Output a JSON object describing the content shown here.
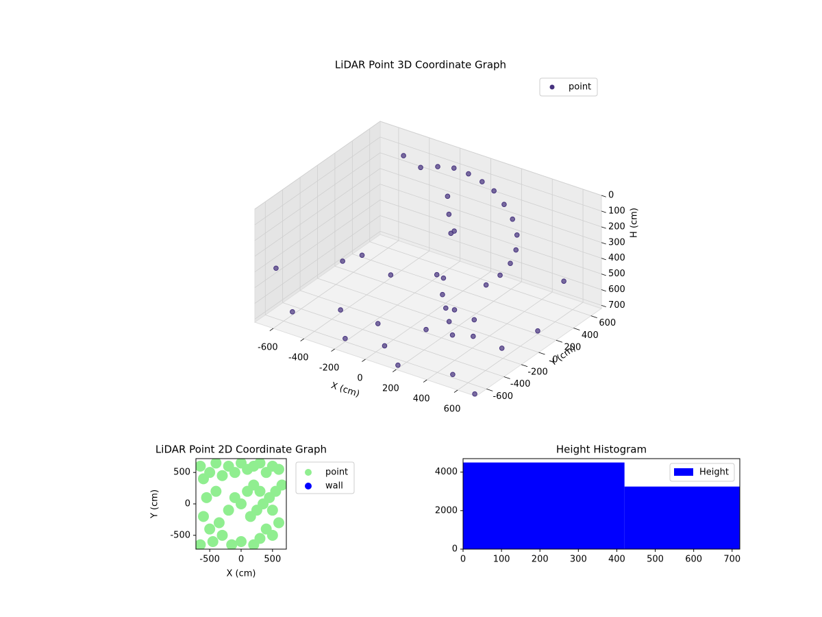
{
  "chart_data": [
    {
      "type": "scatter3d",
      "title": "LiDAR Point 3D Coordinate Graph",
      "x_label": "X (cm)",
      "y_label": "Y (cm)",
      "z_label": "H (cm)",
      "xlim": [
        -720,
        720
      ],
      "ylim": [
        -720,
        720
      ],
      "zlim": [
        720,
        0
      ],
      "xticks": [
        -600,
        -400,
        -200,
        0,
        200,
        400,
        600
      ],
      "yticks": [
        -600,
        -400,
        -200,
        0,
        200,
        400,
        600
      ],
      "zticks": [
        0,
        100,
        200,
        300,
        400,
        500,
        600,
        700
      ],
      "grid": true,
      "legend": "upper right",
      "series": [
        {
          "name": "point",
          "color": "#46327e",
          "x": [
            -500,
            -400,
            -300,
            -200,
            -100,
            0,
            100,
            200,
            300,
            380,
            430,
            450,
            440,
            400,
            -100,
            -80,
            -50,
            0,
            100,
            150,
            200,
            250,
            300,
            200,
            100,
            300,
            350,
            0,
            -600,
            -400,
            -200,
            200,
            500,
            600,
            -600,
            -300,
            -500,
            -650,
            0,
            600,
            650,
            700,
            -100
          ],
          "y": [
            600,
            620,
            640,
            650,
            640,
            620,
            580,
            520,
            440,
            350,
            250,
            150,
            50,
            -40,
            400,
            380,
            350,
            300,
            0,
            -100,
            -150,
            -200,
            -250,
            -50,
            -200,
            0,
            -100,
            100,
            -500,
            -300,
            -600,
            -700,
            -600,
            200,
            300,
            100,
            -100,
            -600,
            -500,
            500,
            -300,
            -700,
            -400
          ],
          "z": [
            100,
            150,
            120,
            100,
            100,
            110,
            120,
            150,
            180,
            220,
            260,
            300,
            340,
            380,
            150,
            250,
            350,
            300,
            450,
            500,
            550,
            600,
            650,
            600,
            700,
            650,
            700,
            500,
            700,
            700,
            700,
            700,
            700,
            700,
            650,
            600,
            500,
            400,
            720,
            500,
            600,
            720,
            650
          ]
        }
      ]
    },
    {
      "type": "scatter",
      "title": "LiDAR Point 2D Coordinate Graph",
      "x_label": "X (cm)",
      "y_label": "Y (cm)",
      "xlim": [
        -720,
        720
      ],
      "ylim": [
        -720,
        720
      ],
      "xticks": [
        -500,
        0,
        500
      ],
      "yticks": [
        -500,
        0,
        500
      ],
      "legend": "outside right",
      "series": [
        {
          "name": "point",
          "color": "#90ee90",
          "x": [
            -650,
            -600,
            -500,
            -400,
            -300,
            -200,
            -100,
            0,
            100,
            200,
            300,
            400,
            500,
            600,
            650,
            550,
            450,
            350,
            250,
            150,
            500,
            600,
            400,
            300,
            200,
            500,
            -100,
            0,
            100,
            200,
            300,
            -200,
            -350,
            -500,
            -600,
            -650,
            -450,
            -300,
            -150,
            0,
            -550,
            -400
          ],
          "y": [
            600,
            400,
            500,
            650,
            450,
            600,
            500,
            650,
            550,
            600,
            650,
            500,
            600,
            550,
            300,
            200,
            100,
            0,
            -100,
            -200,
            -100,
            -300,
            -400,
            -550,
            -650,
            -500,
            100,
            0,
            200,
            300,
            200,
            -100,
            -300,
            -400,
            -200,
            -650,
            -600,
            -500,
            -650,
            -600,
            100,
            200
          ]
        },
        {
          "name": "wall",
          "color": "#0000ff",
          "x": [],
          "y": []
        }
      ]
    },
    {
      "type": "histogram",
      "title": "Height Histogram",
      "label": "Height",
      "color": "#0000ff",
      "bins": [
        0,
        420,
        720
      ],
      "values": [
        4500,
        3250
      ],
      "xlim": [
        0,
        720
      ],
      "ylim": [
        0,
        4700
      ],
      "xticks": [
        0,
        100,
        200,
        300,
        400,
        500,
        600,
        700
      ],
      "yticks": [
        0,
        2000,
        4000
      ],
      "legend": "upper right"
    }
  ]
}
